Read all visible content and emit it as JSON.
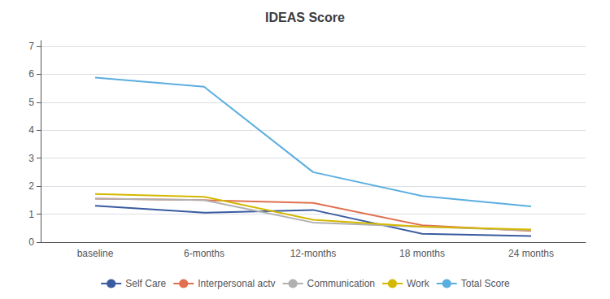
{
  "chart_data": {
    "type": "line",
    "title": "IDEAS Score",
    "categories": [
      "baseline",
      "6-months",
      "12-months",
      "18 months",
      "24 months"
    ],
    "series": [
      {
        "name": "Self Care",
        "color": "#3A5BA0",
        "values": [
          1.3,
          1.05,
          1.15,
          0.3,
          0.22
        ]
      },
      {
        "name": "Interpersonal actv",
        "color": "#E07050",
        "values": [
          1.55,
          1.5,
          1.4,
          0.6,
          0.4
        ]
      },
      {
        "name": "Communication",
        "color": "#B0B0B0",
        "values": [
          1.55,
          1.5,
          0.7,
          0.55,
          0.42
        ]
      },
      {
        "name": "Work",
        "color": "#D4B800",
        "values": [
          1.72,
          1.62,
          0.8,
          0.55,
          0.45
        ]
      },
      {
        "name": "Total Score",
        "color": "#5BAEE0",
        "values": [
          5.88,
          5.55,
          2.5,
          1.65,
          1.28
        ]
      }
    ],
    "ylim": [
      0,
      7.2
    ],
    "yticks": [
      0,
      1,
      2,
      3,
      4,
      5,
      6,
      7
    ],
    "grid": true,
    "legend": "bottom"
  }
}
